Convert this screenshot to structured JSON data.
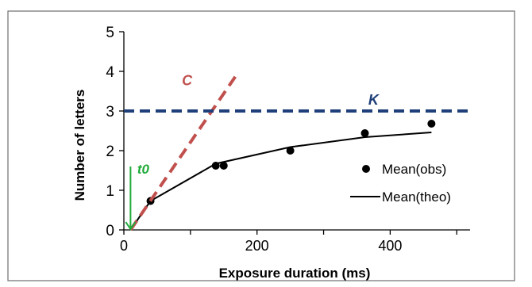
{
  "chart_data": {
    "type": "scatter",
    "title": "",
    "xlabel": "Exposure duration (ms)",
    "ylabel": "Number of letters",
    "xlim": [
      0,
      520
    ],
    "ylim": [
      0,
      5
    ],
    "xticks": [
      0,
      200,
      400
    ],
    "yticks": [
      0,
      1,
      2,
      3,
      4,
      5
    ],
    "grid": false,
    "legend_position": "bottom-right",
    "series": [
      {
        "name": "Mean(obs)",
        "kind": "scatter",
        "color": "#000000",
        "points": [
          {
            "x": 40,
            "y": 0.73
          },
          {
            "x": 138,
            "y": 1.62
          },
          {
            "x": 150,
            "y": 1.62
          },
          {
            "x": 250,
            "y": 2.0
          },
          {
            "x": 362,
            "y": 2.44
          },
          {
            "x": 462,
            "y": 2.68
          }
        ]
      },
      {
        "name": "Mean(theo)",
        "kind": "line",
        "color": "#000000",
        "points": [
          {
            "x": 10,
            "y": 0
          },
          {
            "x": 40,
            "y": 0.73
          },
          {
            "x": 138,
            "y": 1.67
          },
          {
            "x": 250,
            "y": 2.09
          },
          {
            "x": 362,
            "y": 2.34
          },
          {
            "x": 462,
            "y": 2.46
          }
        ]
      }
    ],
    "annotations": [
      {
        "label": "C",
        "kind": "dashed-line",
        "color": "#c0504d",
        "from": {
          "x": 10,
          "y": 0
        },
        "to": {
          "x": 170,
          "y": 3.93
        }
      },
      {
        "label": "K",
        "kind": "dashed-hline",
        "color": "#1f3f7a",
        "y": 3.0
      },
      {
        "label": "t0",
        "kind": "arrow",
        "color": "#1faa3a",
        "x": 10,
        "from_y": 1.6,
        "to_y": 0
      }
    ]
  }
}
